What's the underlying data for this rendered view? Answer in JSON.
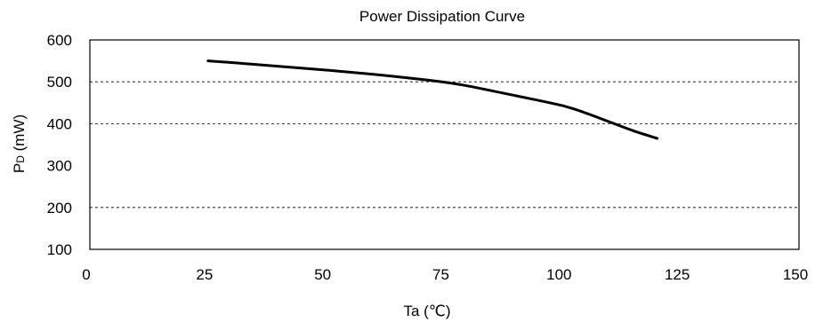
{
  "chart_data": {
    "type": "line",
    "title": "Power Dissipation Curve",
    "xlabel": "Ta (℃)",
    "ylabel": "PD (mW)",
    "ylabel_main": "P",
    "ylabel_sub": "D",
    "ylabel_rest": " (mW)",
    "xlim": [
      0,
      150
    ],
    "ylim": [
      100,
      600
    ],
    "x_ticks": [
      0,
      25,
      50,
      75,
      100,
      125,
      150
    ],
    "y_ticks": [
      100,
      200,
      300,
      400,
      500,
      600
    ],
    "x_tick_labels": [
      "0",
      "25",
      "50",
      "75",
      "100",
      "125",
      "150"
    ],
    "y_tick_labels": [
      "100",
      "200",
      "300",
      "400",
      "500",
      "600"
    ],
    "grid": {
      "horizontal": true,
      "style": "dashed",
      "dashed_at": [
        200,
        400,
        500
      ]
    },
    "series": [
      {
        "x": [
          25,
          30,
          40,
          50,
          60,
          70,
          75,
          80,
          90,
          100,
          105,
          110,
          115,
          120
        ],
        "y": [
          550,
          546,
          537,
          528,
          518,
          506,
          499,
          490,
          467,
          443,
          425,
          404,
          383,
          365
        ],
        "color": "#000000"
      }
    ]
  }
}
